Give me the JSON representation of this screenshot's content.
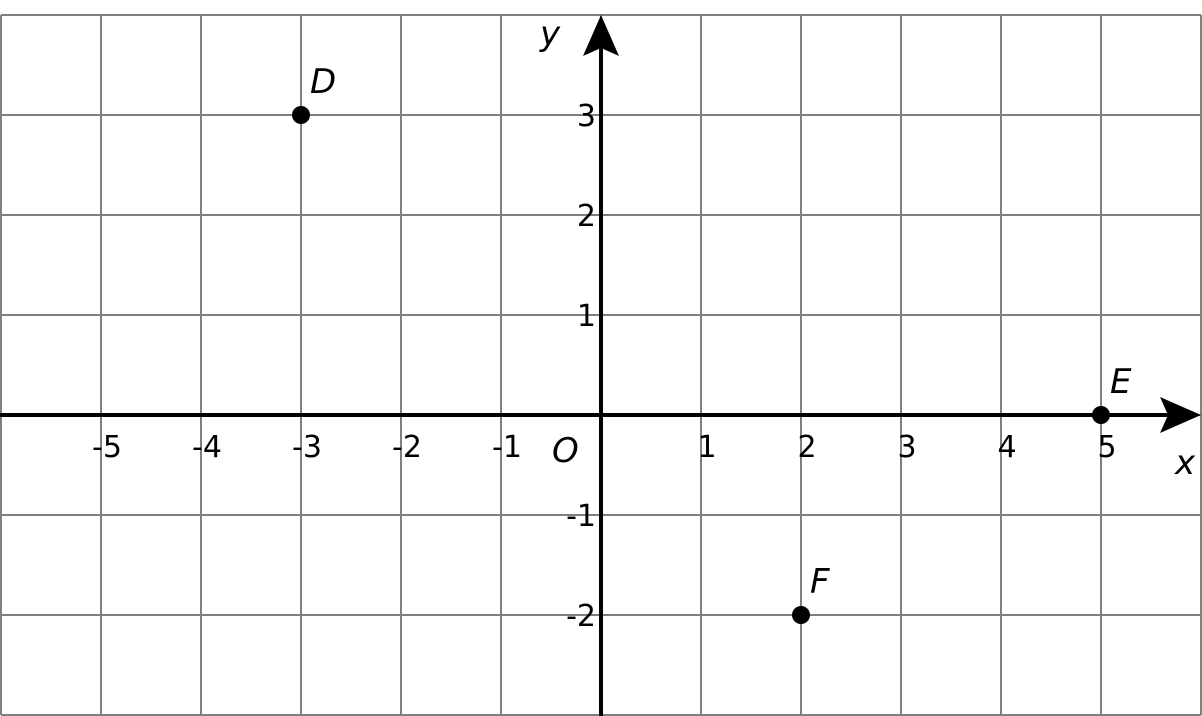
{
  "chart_data": {
    "type": "scatter",
    "title": "",
    "xlabel": "x",
    "ylabel": "y",
    "origin_label": "O",
    "xlim": [
      -6,
      6
    ],
    "ylim": [
      -3,
      4
    ],
    "grid": true,
    "x_ticks": [
      -5,
      -4,
      -3,
      -2,
      -1,
      1,
      2,
      3,
      4,
      5
    ],
    "y_ticks": [
      -2,
      -1,
      1,
      2,
      3
    ],
    "points": [
      {
        "label": "D",
        "x": -3,
        "y": 3
      },
      {
        "label": "E",
        "x": 5,
        "y": 0
      },
      {
        "label": "F",
        "x": 2,
        "y": -2
      }
    ],
    "colors": {
      "grid": "#7f7f7f",
      "axis": "#000000",
      "point": "#000000"
    }
  }
}
